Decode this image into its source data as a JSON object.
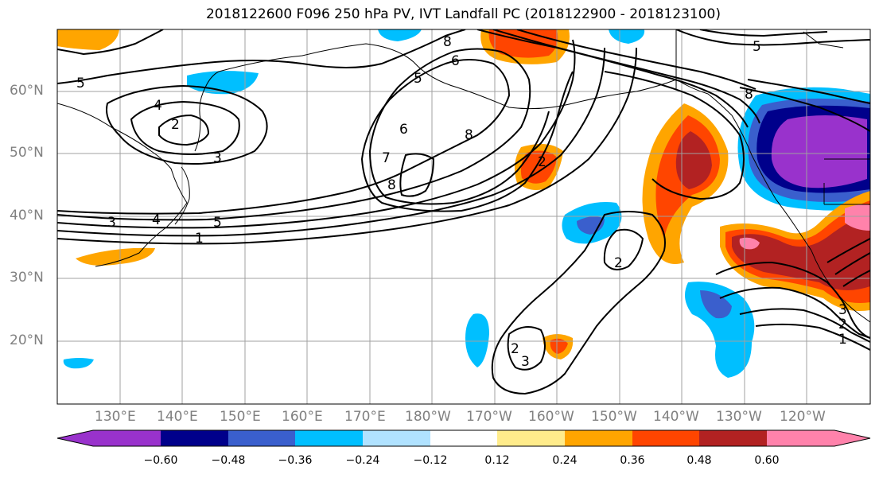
{
  "title": "2018122600 F096 250 hPa PV, IVT Landfall PC (2018122900 - 2018123100)",
  "map": {
    "lat_ticks": [
      "60°N",
      "50°N",
      "40°N",
      "30°N",
      "20°N"
    ],
    "lon_ticks": [
      "130°E",
      "140°E",
      "150°E",
      "160°E",
      "170°E",
      "180°W",
      "170°W",
      "160°W",
      "150°W",
      "140°W",
      "130°W",
      "120°W"
    ],
    "contour_labels": [
      "5",
      "4",
      "2",
      "3",
      "8",
      "6",
      "5",
      "6",
      "7",
      "8",
      "8",
      "2",
      "5",
      "8",
      "5",
      "4",
      "3",
      "1",
      "2",
      "2",
      "3",
      "3",
      "2",
      "1"
    ]
  },
  "colorbar": {
    "ticks": [
      "−0.60",
      "−0.48",
      "−0.36",
      "−0.24",
      "−0.12",
      "0.12",
      "0.24",
      "0.36",
      "0.48",
      "0.60"
    ],
    "colors": [
      "#9932CC",
      "#00008B",
      "#3A5FCD",
      "#00BFFF",
      "#B0E2FF",
      "#FFFFFF",
      "#FFEC8B",
      "#FFA500",
      "#FF4500",
      "#B22222",
      "#FF82AB"
    ]
  },
  "colors": {
    "contour": "#000000",
    "grid": "#a0a0a0",
    "tick_label": "#808080"
  }
}
